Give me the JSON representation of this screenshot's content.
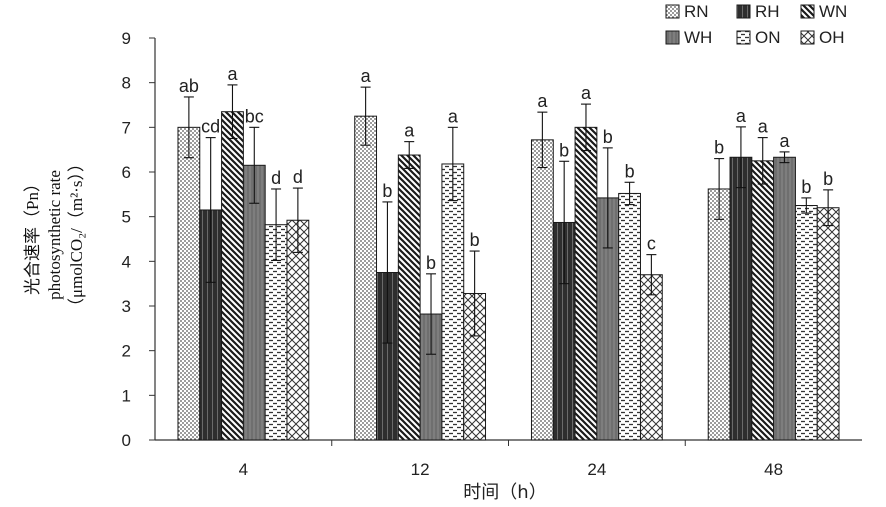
{
  "chart_data": {
    "type": "bar",
    "categories": [
      "4",
      "12",
      "24",
      "48"
    ],
    "xlabel": "时间（h）",
    "ylabel_lines": [
      "光合速率（Pn）",
      "photosynthetic rate",
      "（μmolCO₂/（m²·s））"
    ],
    "ylim": [
      0,
      9
    ],
    "yticks": [
      "0",
      "1",
      "2",
      "3",
      "4",
      "5",
      "6",
      "7",
      "8",
      "9"
    ],
    "grid": false,
    "legend_position": "top-right",
    "series": [
      {
        "name": "RN",
        "pattern": "dots",
        "values": [
          7.0,
          7.25,
          6.72,
          5.62
        ],
        "errors": [
          0.68,
          0.65,
          0.62,
          0.68
        ],
        "labels": [
          "ab",
          "a",
          "a",
          "b"
        ]
      },
      {
        "name": "RH",
        "pattern": "dark",
        "values": [
          5.15,
          3.75,
          4.87,
          6.33
        ],
        "errors": [
          1.62,
          1.58,
          1.37,
          0.68
        ],
        "labels": [
          "cd",
          "b",
          "b",
          "a"
        ]
      },
      {
        "name": "WN",
        "pattern": "diagonal",
        "values": [
          7.35,
          6.38,
          7.0,
          6.25
        ],
        "errors": [
          0.6,
          0.3,
          0.52,
          0.52
        ],
        "labels": [
          "a",
          "a",
          "a",
          "a"
        ]
      },
      {
        "name": "WH",
        "pattern": "gray",
        "values": [
          6.15,
          2.82,
          5.42,
          6.33
        ],
        "errors": [
          0.85,
          0.9,
          1.12,
          0.12
        ],
        "labels": [
          "bc",
          "b",
          "b",
          "a"
        ]
      },
      {
        "name": "ON",
        "pattern": "dashes",
        "values": [
          4.82,
          6.18,
          5.52,
          5.25
        ],
        "errors": [
          0.8,
          0.82,
          0.25,
          0.17
        ],
        "labels": [
          "d",
          "a",
          "b",
          "b"
        ]
      },
      {
        "name": "OH",
        "pattern": "cross",
        "values": [
          4.92,
          3.28,
          3.7,
          5.2
        ],
        "errors": [
          0.72,
          0.95,
          0.45,
          0.4
        ],
        "labels": [
          "d",
          "b",
          "c",
          "b"
        ]
      }
    ]
  }
}
